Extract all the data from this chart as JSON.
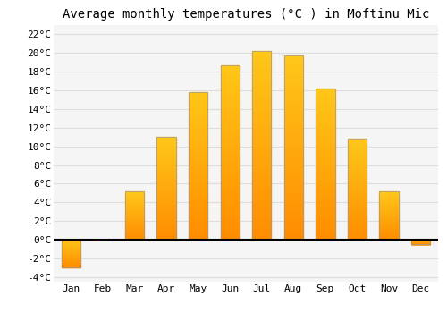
{
  "title": "Average monthly temperatures (°C ) in Moftinu Mic",
  "months": [
    "Jan",
    "Feb",
    "Mar",
    "Apr",
    "May",
    "Jun",
    "Jul",
    "Aug",
    "Sep",
    "Oct",
    "Nov",
    "Dec"
  ],
  "values": [
    -3.0,
    0.0,
    5.2,
    11.0,
    15.8,
    18.7,
    20.2,
    19.7,
    16.2,
    10.8,
    5.2,
    -0.5
  ],
  "bar_color_top": "#FFB700",
  "bar_color_bottom": "#FF8C00",
  "bar_edge_color": "#999999",
  "background_color": "#ffffff",
  "plot_bg_color": "#f5f5f5",
  "grid_color": "#dddddd",
  "ylim": [
    -4.5,
    23.0
  ],
  "yticks": [
    -4,
    -2,
    0,
    2,
    4,
    6,
    8,
    10,
    12,
    14,
    16,
    18,
    20,
    22
  ],
  "title_fontsize": 10,
  "tick_fontsize": 8,
  "zero_line_color": "#000000",
  "fig_width": 5.0,
  "fig_height": 3.5,
  "dpi": 100,
  "bar_width": 0.6
}
